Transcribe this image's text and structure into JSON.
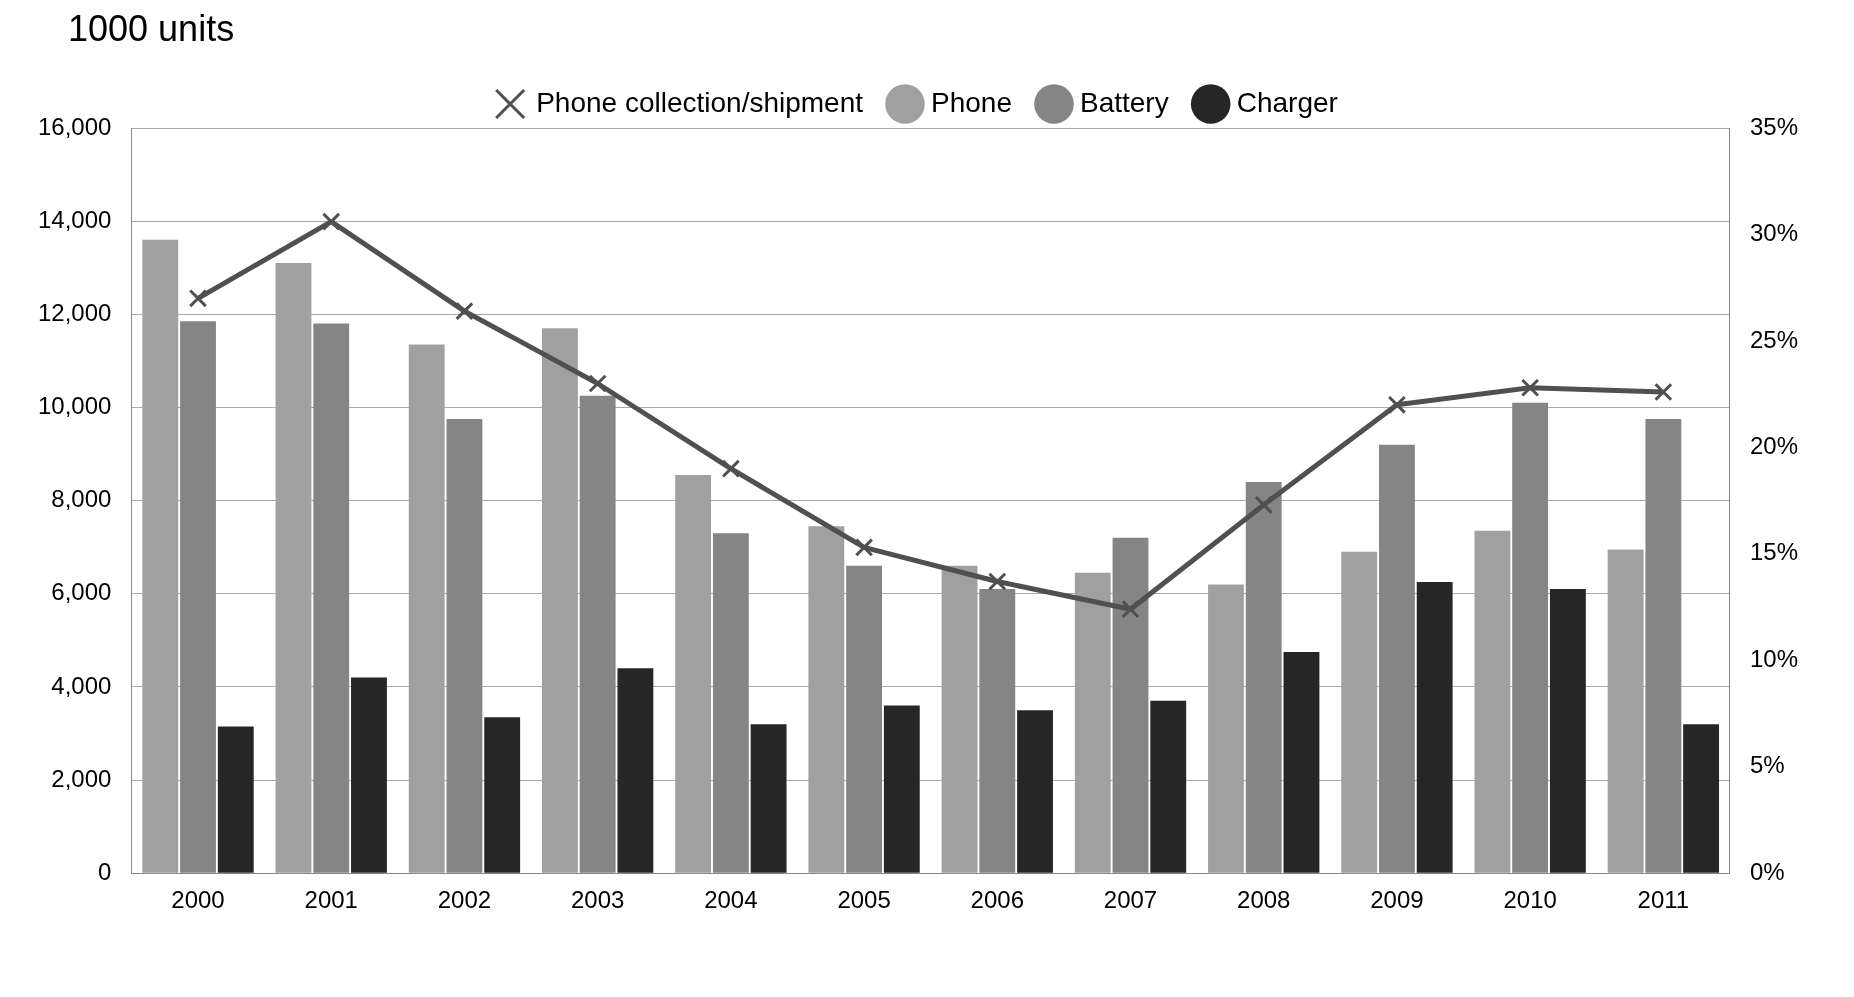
{
  "chart_data": {
    "type": "bar",
    "ylabel": "1000 units",
    "categories": [
      "2000",
      "2001",
      "2002",
      "2003",
      "2004",
      "2005",
      "2006",
      "2007",
      "2008",
      "2009",
      "2010",
      "2011"
    ],
    "series": [
      {
        "name": "Phone",
        "color": "#a0a0a0",
        "values": [
          13600,
          13100,
          11350,
          11700,
          8550,
          7450,
          6600,
          6450,
          6200,
          6900,
          7350,
          6950
        ]
      },
      {
        "name": "Battery",
        "color": "#858585",
        "values": [
          11850,
          11800,
          9750,
          10250,
          7300,
          6600,
          6100,
          7200,
          8400,
          9200,
          10100,
          9750
        ]
      },
      {
        "name": "Charger",
        "color": "#262626",
        "values": [
          3150,
          4200,
          3350,
          4400,
          3200,
          3600,
          3500,
          3700,
          4750,
          6250,
          6100,
          3200
        ]
      },
      {
        "name": "Phone collection/shipment",
        "type": "line",
        "axis": "y2",
        "color": "#505050",
        "marker": "cross",
        "values": [
          27,
          30.6,
          26.4,
          23,
          19,
          15.3,
          13.7,
          12.4,
          17.3,
          22,
          22.8,
          22.6
        ]
      }
    ],
    "ylim": [
      0,
      16000
    ],
    "yticks": [
      0,
      {
        "value": 2000,
        "label": "2,000"
      },
      {
        "value": 4000,
        "label": "4,000"
      },
      {
        "value": 6000,
        "label": "6,000"
      },
      {
        "value": 8000,
        "label": "8,000"
      },
      {
        "value": 10000,
        "label": "10,000"
      },
      {
        "value": 12000,
        "label": "12,000"
      },
      {
        "value": 14000,
        "label": "14,000"
      },
      {
        "value": 16000,
        "label": "16,000"
      }
    ],
    "y2lim": [
      0,
      35
    ],
    "y2ticks": [
      {
        "value": 0,
        "label": "0%"
      },
      {
        "value": 5,
        "label": "5%"
      },
      {
        "value": 10,
        "label": "10%"
      },
      {
        "value": 15,
        "label": "15%"
      },
      {
        "value": 20,
        "label": "20%"
      },
      {
        "value": 25,
        "label": "25%"
      },
      {
        "value": 30,
        "label": "30%"
      },
      {
        "value": 35,
        "label": "35%"
      }
    ],
    "grid": "y",
    "legend": "top"
  }
}
